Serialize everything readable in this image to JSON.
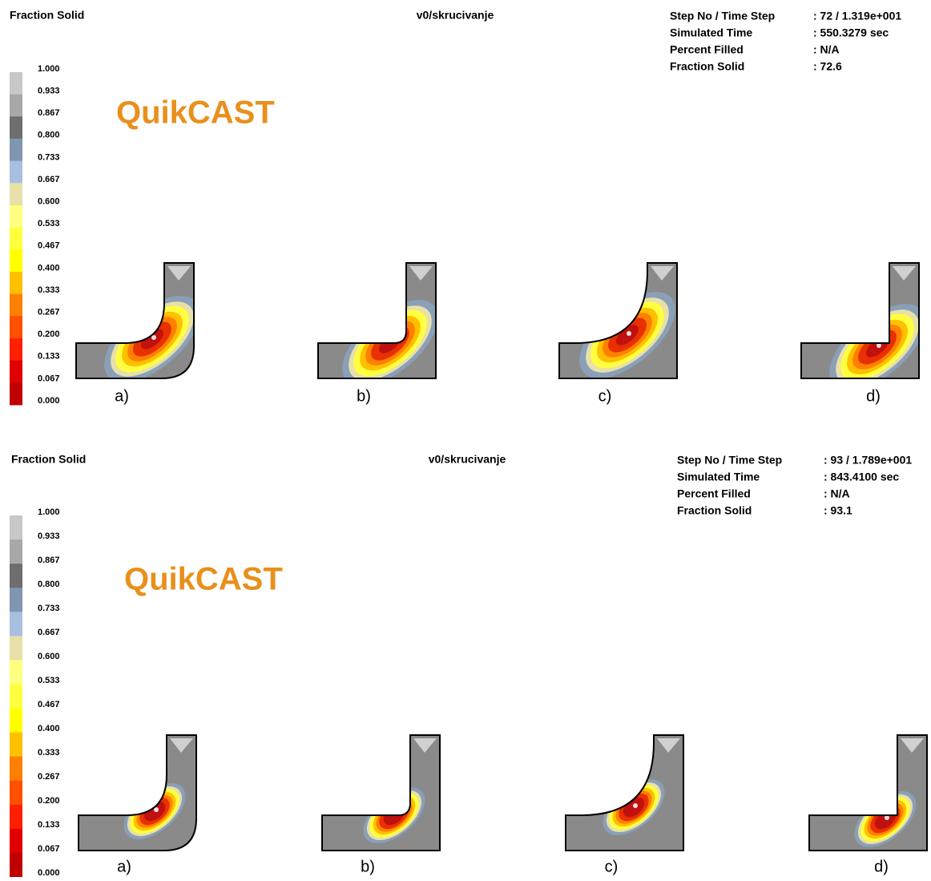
{
  "panels": [
    {
      "title": "Fraction Solid",
      "subtitle": "v0/skrucivanje",
      "info": [
        {
          "label": "Step No / Time Step",
          "value": ": 72 / 1.319e+001"
        },
        {
          "label": "Simulated Time",
          "value": ": 550.3279 sec"
        },
        {
          "label": "Percent Filled",
          "value": ": N/A"
        },
        {
          "label": "Fraction Solid",
          "value": ": 72.6"
        }
      ],
      "legend": {
        "labels": [
          "1.000",
          "0.933",
          "0.867",
          "0.800",
          "0.733",
          "0.667",
          "0.600",
          "0.533",
          "0.467",
          "0.400",
          "0.333",
          "0.267",
          "0.200",
          "0.133",
          "0.067",
          "0.000"
        ],
        "colors": [
          "#c8c8c8",
          "#a8a8a8",
          "#6e6e6e",
          "#7f96b2",
          "#a8c0e0",
          "#e8e0a8",
          "#ffff80",
          "#ffff40",
          "#ffff00",
          "#ffc000",
          "#ff8000",
          "#ff5000",
          "#ff2000",
          "#e00000",
          "#c00000"
        ]
      },
      "logo": "QuikCAST",
      "cases": [
        "a)",
        "b)",
        "c)",
        "d)"
      ]
    },
    {
      "title": "Fraction Solid",
      "subtitle": "v0/skrucivanje",
      "info": [
        {
          "label": "Step No / Time Step",
          "value": ": 93 / 1.789e+001"
        },
        {
          "label": "Simulated Time",
          "value": ": 843.4100 sec"
        },
        {
          "label": "Percent Filled",
          "value": ": N/A"
        },
        {
          "label": "Fraction Solid",
          "value": ": 93.1"
        }
      ],
      "legend": {
        "labels": [
          "1.000",
          "0.933",
          "0.867",
          "0.800",
          "0.733",
          "0.667",
          "0.600",
          "0.533",
          "0.467",
          "0.400",
          "0.333",
          "0.267",
          "0.200",
          "0.133",
          "0.067",
          "0.000"
        ],
        "colors": [
          "#c8c8c8",
          "#a8a8a8",
          "#6e6e6e",
          "#7f96b2",
          "#a8c0e0",
          "#e8e0a8",
          "#ffff80",
          "#ffff40",
          "#ffff00",
          "#ffc000",
          "#ff8000",
          "#ff5000",
          "#ff2000",
          "#e00000",
          "#c00000"
        ]
      },
      "logo": "QuikCAST",
      "cases": [
        "a)",
        "b)",
        "c)",
        "d)"
      ]
    }
  ]
}
